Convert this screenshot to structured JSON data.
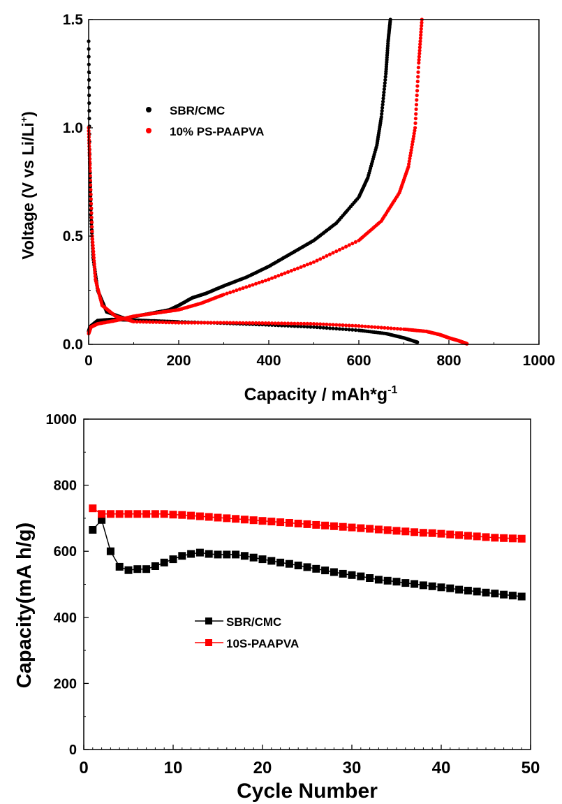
{
  "chart_data": [
    {
      "type": "scatter",
      "xlabel": "Capacity / mAh*g",
      "xlabel_sup": "-1",
      "ylabel": "Voltage (V vs Li/Li",
      "ylabel_sup": "+",
      "ylabel_end": ")",
      "xlim": [
        0,
        1000
      ],
      "ylim": [
        0,
        1.5
      ],
      "xticks": [
        0,
        200,
        400,
        600,
        800,
        1000
      ],
      "yticks": [
        0.0,
        0.5,
        1.0,
        1.5
      ],
      "xtick_labels": [
        "0",
        "200",
        "400",
        "600",
        "800",
        "1000"
      ],
      "ytick_labels": [
        "0.0",
        "0.5",
        "1.0",
        "1.5"
      ],
      "legend_position": "upper-left",
      "grid": false,
      "series": [
        {
          "name": "SBR/CMC",
          "color": "#000000",
          "discharge": {
            "x": [
              0,
              3,
              8,
              20,
              50,
              100,
              150,
              200,
              300,
              400,
              500,
              600,
              660,
              700,
              730
            ],
            "y": [
              0.06,
              0.08,
              0.09,
              0.11,
              0.115,
              0.112,
              0.108,
              0.104,
              0.098,
              0.09,
              0.08,
              0.065,
              0.05,
              0.03,
              0.01
            ]
          },
          "charge": {
            "x": [
              0,
              2,
              5,
              10,
              20,
              40,
              80,
              130,
              180,
              200,
              230,
              260,
              300,
              350,
              400,
              450,
              500,
              550,
              600,
              620,
              640,
              650,
              660,
              665,
              670
            ],
            "y": [
              1.4,
              0.9,
              0.6,
              0.4,
              0.25,
              0.15,
              0.12,
              0.14,
              0.16,
              0.18,
              0.215,
              0.235,
              0.27,
              0.31,
              0.36,
              0.42,
              0.48,
              0.56,
              0.68,
              0.77,
              0.92,
              1.05,
              1.25,
              1.4,
              1.5
            ]
          }
        },
        {
          "name": "10% PS-PAAPVA",
          "color": "#ff0000",
          "discharge": {
            "x": [
              0,
              3,
              8,
              15,
              30,
              60,
              100,
              200,
              300,
              400,
              500,
              600,
              700,
              750,
              780,
              800,
              820,
              835,
              840
            ],
            "y": [
              1.0,
              0.8,
              0.5,
              0.3,
              0.18,
              0.13,
              0.105,
              0.1,
              0.1,
              0.098,
              0.095,
              0.085,
              0.07,
              0.06,
              0.045,
              0.03,
              0.018,
              0.007,
              0.003
            ]
          },
          "charge": {
            "x": [
              0,
              5,
              20,
              60,
              100,
              150,
              200,
              250,
              300,
              400,
              500,
              600,
              650,
              690,
              710,
              725,
              733,
              740
            ],
            "y": [
              0.05,
              0.08,
              0.095,
              0.11,
              0.13,
              0.145,
              0.16,
              0.19,
              0.23,
              0.3,
              0.38,
              0.48,
              0.57,
              0.7,
              0.82,
              1.0,
              1.3,
              1.5
            ]
          }
        }
      ]
    },
    {
      "type": "line",
      "xlabel": "Cycle Number",
      "ylabel": "Capacity(mA h/g)",
      "xlim": [
        0,
        50
      ],
      "ylim": [
        0,
        1000
      ],
      "xticks": [
        0,
        10,
        20,
        30,
        40,
        50
      ],
      "yticks": [
        0,
        200,
        400,
        600,
        800,
        1000
      ],
      "xtick_labels": [
        "0",
        "10",
        "20",
        "30",
        "40",
        "50"
      ],
      "ytick_labels": [
        "0",
        "200",
        "400",
        "600",
        "800",
        "1000"
      ],
      "legend_position": "center-left",
      "grid": false,
      "x": [
        1,
        2,
        3,
        4,
        5,
        6,
        7,
        8,
        9,
        10,
        11,
        12,
        13,
        14,
        15,
        16,
        17,
        18,
        19,
        20,
        21,
        22,
        23,
        24,
        25,
        26,
        27,
        28,
        29,
        30,
        31,
        32,
        33,
        34,
        35,
        36,
        37,
        38,
        39,
        40,
        41,
        42,
        43,
        44,
        45,
        46,
        47,
        48,
        49
      ],
      "series": [
        {
          "name": "SBR/CMC",
          "color": "#000000",
          "values": [
            665,
            695,
            600,
            553,
            543,
            546,
            546,
            555,
            566,
            576,
            586,
            592,
            596,
            592,
            590,
            590,
            590,
            586,
            581,
            576,
            571,
            566,
            562,
            557,
            552,
            547,
            542,
            537,
            532,
            528,
            524,
            519,
            514,
            511,
            508,
            504,
            501,
            497,
            494,
            491,
            488,
            484,
            481,
            478,
            475,
            472,
            469,
            466,
            463
          ]
        },
        {
          "name": "10S-PAAPVA",
          "color": "#ff0000",
          "values": [
            730,
            713,
            713,
            713,
            713,
            713,
            713,
            713,
            713,
            711,
            710,
            708,
            706,
            704,
            702,
            700,
            698,
            696,
            694,
            692,
            690,
            688,
            686,
            684,
            682,
            680,
            678,
            676,
            674,
            672,
            670,
            668,
            666,
            664,
            662,
            660,
            658,
            656,
            655,
            653,
            651,
            649,
            647,
            645,
            643,
            641,
            640,
            639,
            638
          ]
        }
      ]
    }
  ]
}
